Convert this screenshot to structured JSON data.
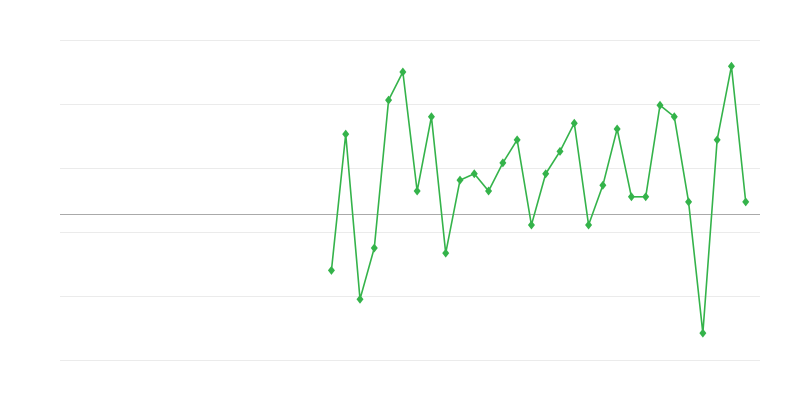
{
  "chart_data": {
    "type": "line",
    "title": "",
    "xlabel": "",
    "ylabel": "",
    "xlim": [
      0,
      49
    ],
    "ylim": [
      -2.28,
      2.72
    ],
    "grid": true,
    "gridlines_y": [
      -2.28,
      -1.28,
      -0.28,
      0.72,
      1.72,
      2.72
    ],
    "baseline": 0,
    "legend": "none",
    "marker": "diamond",
    "colors": {
      "series": "#34b34a",
      "grid": "#ebebeb",
      "baseline": "#aaaaaa"
    },
    "series": [
      {
        "x": [
          19,
          20,
          21,
          22,
          23,
          24,
          25,
          26,
          27,
          28,
          29,
          30,
          31,
          32,
          33,
          34,
          35,
          36,
          37,
          38,
          39,
          40,
          41,
          42,
          43,
          44,
          45,
          46,
          47,
          48
        ],
        "values": [
          -0.88,
          1.25,
          -1.33,
          -0.53,
          1.78,
          2.22,
          0.36,
          1.52,
          -0.61,
          0.53,
          0.63,
          0.36,
          0.8,
          1.16,
          -0.17,
          0.63,
          0.98,
          1.42,
          -0.17,
          0.45,
          1.33,
          0.27,
          0.27,
          1.7,
          1.52,
          0.19,
          -1.86,
          1.16,
          2.31,
          0.19
        ]
      }
    ]
  }
}
